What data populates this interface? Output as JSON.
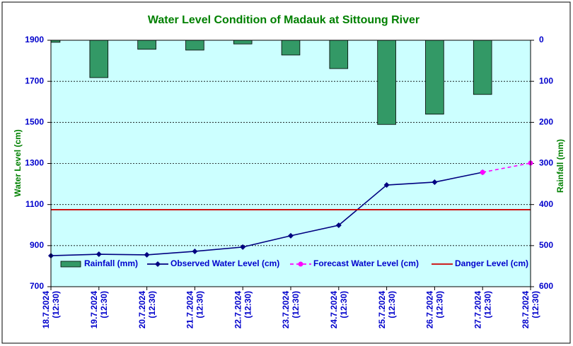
{
  "chart_data": {
    "type": "bar",
    "title": "Water Level Condition of Madauk at Sittoung River",
    "y_label": "Water Level (cm)",
    "y2_label": "Rainfall (mm)",
    "categories": [
      [
        "18.7.2024",
        "(12:30)"
      ],
      [
        "19.7.2024",
        "(12:30)"
      ],
      [
        "20.7.2024",
        "(12:30)"
      ],
      [
        "21.7.2024",
        "(12:30)"
      ],
      [
        "22.7.2024",
        "(12:30)"
      ],
      [
        "23.7.2024",
        "(12:30)"
      ],
      [
        "24.7.2024",
        "(12:30)"
      ],
      [
        "25.7.2024",
        "(12:30)"
      ],
      [
        "26.7.2024",
        "(12:30)"
      ],
      [
        "27.7.2024",
        "(12:30)"
      ],
      [
        "28.7.2024",
        "(12:30)"
      ]
    ],
    "ylim": [
      700,
      1900
    ],
    "yticks": [
      700,
      900,
      1100,
      1300,
      1500,
      1700,
      1900
    ],
    "y2lim": [
      0,
      600
    ],
    "y2ticks": [
      0,
      100,
      200,
      300,
      400,
      500,
      600
    ],
    "y2_inverted": true,
    "grid": true,
    "series": [
      {
        "name": "Rainfall (mm)",
        "type": "bar",
        "axis": "y2",
        "color": "#339966",
        "values": [
          5,
          91,
          22,
          24,
          9,
          36,
          69,
          205,
          180,
          132,
          null
        ]
      },
      {
        "name": "Observed Water Level (cm)",
        "type": "line",
        "marker": "diamond",
        "color": "#000080",
        "values": [
          851,
          858,
          855,
          872,
          893,
          948,
          999,
          1195,
          1209,
          1257,
          null
        ]
      },
      {
        "name": "Forecast Water Level (cm)",
        "type": "line",
        "marker": "circle",
        "dashed": true,
        "color": "#ff00ff",
        "values": [
          null,
          null,
          null,
          null,
          null,
          null,
          null,
          null,
          null,
          1257,
          1302
        ]
      },
      {
        "name": "Danger Level (cm)",
        "type": "line",
        "color": "#cc0000",
        "values": [
          1075,
          1075,
          1075,
          1075,
          1075,
          1075,
          1075,
          1075,
          1075,
          1075,
          1075
        ]
      }
    ]
  }
}
